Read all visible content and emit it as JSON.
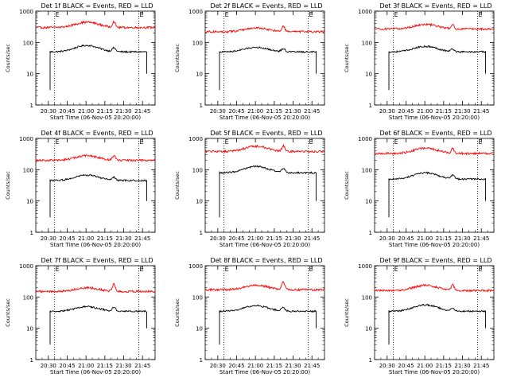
{
  "chart_data": [
    {
      "type": "line",
      "title": "Det 1f BLACK = Events, RED = LLD",
      "xlabel": "Start Time (06-Nov-05 20:20:00)",
      "ylabel": "Counts/sec",
      "x_ticks": [
        "20:30",
        "20:45",
        "21:00",
        "21:15",
        "21:30",
        "21:45"
      ],
      "y_ticks": [
        "1",
        "10",
        "100",
        "1000"
      ],
      "y_scale": "log",
      "ylim": [
        1,
        1000
      ],
      "xlim": [
        "20:20",
        "21:55"
      ],
      "markers": [
        "20:35",
        "21:42"
      ],
      "marker_labels": [
        "E",
        "E"
      ],
      "series": [
        {
          "color": "#000000"
        },
        {
          "color": "#ff0000"
        }
      ]
    },
    {
      "type": "line",
      "title": "Det 2f BLACK = Events, RED = LLD",
      "xlabel": "Start Time (06-Nov-05 20:20:00)",
      "ylabel": "Counts/sec",
      "x_ticks": [
        "20:30",
        "20:45",
        "21:00",
        "21:15",
        "21:30",
        "21:45"
      ],
      "y_ticks": [
        "1",
        "10",
        "100",
        "1000"
      ],
      "y_scale": "log",
      "ylim": [
        1,
        1000
      ],
      "xlim": [
        "20:20",
        "21:55"
      ],
      "markers": [
        "20:35",
        "21:42"
      ],
      "marker_labels": [
        "E",
        "E"
      ],
      "series": [
        {
          "color": "#000000"
        },
        {
          "color": "#ff0000"
        }
      ]
    },
    {
      "type": "line",
      "title": "Det 3f BLACK = Events, RED = LLD",
      "xlabel": "Start Time (06-Nov-05 20:20:00)",
      "ylabel": "Counts/sec",
      "x_ticks": [
        "20:30",
        "20:45",
        "21:00",
        "21:15",
        "21:30",
        "21:45"
      ],
      "y_ticks": [
        "1",
        "10",
        "100",
        "1000"
      ],
      "y_scale": "log",
      "ylim": [
        1,
        1000
      ],
      "xlim": [
        "20:20",
        "21:55"
      ],
      "markers": [
        "20:35",
        "21:42"
      ],
      "marker_labels": [
        "E",
        "E"
      ],
      "series": [
        {
          "color": "#000000"
        },
        {
          "color": "#ff0000"
        }
      ]
    },
    {
      "type": "line",
      "title": "Det 4f BLACK = Events, RED = LLD",
      "xlabel": "Start Time (06-Nov-05 20:20:00)",
      "ylabel": "Counts/sec",
      "x_ticks": [
        "20:30",
        "20:45",
        "21:00",
        "21:15",
        "21:30",
        "21:45"
      ],
      "y_ticks": [
        "1",
        "10",
        "100",
        "1000"
      ],
      "y_scale": "log",
      "ylim": [
        1,
        1000
      ],
      "xlim": [
        "20:20",
        "21:55"
      ],
      "markers": [
        "20:35",
        "21:42"
      ],
      "marker_labels": [
        "E",
        "E"
      ],
      "series": [
        {
          "color": "#000000"
        },
        {
          "color": "#ff0000"
        }
      ]
    },
    {
      "type": "line",
      "title": "Det 5f BLACK = Events, RED = LLD",
      "xlabel": "Start Time (06-Nov-05 20:20:00)",
      "ylabel": "Counts/sec",
      "x_ticks": [
        "20:30",
        "20:45",
        "21:00",
        "21:15",
        "21:30",
        "21:45"
      ],
      "y_ticks": [
        "1",
        "10",
        "100",
        "1000"
      ],
      "y_scale": "log",
      "ylim": [
        1,
        1000
      ],
      "xlim": [
        "20:20",
        "21:55"
      ],
      "markers": [
        "20:35",
        "21:42"
      ],
      "marker_labels": [
        "E",
        "E"
      ],
      "series": [
        {
          "color": "#000000"
        },
        {
          "color": "#ff0000"
        }
      ]
    },
    {
      "type": "line",
      "title": "Det 6f BLACK = Events, RED = LLD",
      "xlabel": "Start Time (06-Nov-05 20:20:00)",
      "ylabel": "Counts/sec",
      "x_ticks": [
        "20:30",
        "20:45",
        "21:00",
        "21:15",
        "21:30",
        "21:45"
      ],
      "y_ticks": [
        "1",
        "10",
        "100",
        "1000"
      ],
      "y_scale": "log",
      "ylim": [
        1,
        1000
      ],
      "xlim": [
        "20:20",
        "21:55"
      ],
      "markers": [
        "20:35",
        "21:42"
      ],
      "marker_labels": [
        "E",
        "E"
      ],
      "series": [
        {
          "color": "#000000"
        },
        {
          "color": "#ff0000"
        }
      ]
    },
    {
      "type": "line",
      "title": "Det 7f BLACK = Events, RED = LLD",
      "xlabel": "Start Time (06-Nov-05 20:20:00)",
      "ylabel": "Counts/sec",
      "x_ticks": [
        "20:30",
        "20:45",
        "21:00",
        "21:15",
        "21:30",
        "21:45"
      ],
      "y_ticks": [
        "1",
        "10",
        "100",
        "1000"
      ],
      "y_scale": "log",
      "ylim": [
        1,
        1000
      ],
      "xlim": [
        "20:20",
        "21:55"
      ],
      "markers": [
        "20:35",
        "21:42"
      ],
      "marker_labels": [
        "E",
        "E"
      ],
      "series": [
        {
          "color": "#000000"
        },
        {
          "color": "#ff0000"
        }
      ]
    },
    {
      "type": "line",
      "title": "Det 8f BLACK = Events, RED = LLD",
      "xlabel": "Start Time (06-Nov-05 20:20:00)",
      "ylabel": "Counts/sec",
      "x_ticks": [
        "20:30",
        "20:45",
        "21:00",
        "21:15",
        "21:30",
        "21:45"
      ],
      "y_ticks": [
        "1",
        "10",
        "100",
        "1000"
      ],
      "y_scale": "log",
      "ylim": [
        1,
        1000
      ],
      "xlim": [
        "20:20",
        "21:55"
      ],
      "markers": [
        "20:35",
        "21:42"
      ],
      "marker_labels": [
        "E",
        "E"
      ],
      "series": [
        {
          "color": "#000000"
        },
        {
          "color": "#ff0000"
        }
      ]
    },
    {
      "type": "line",
      "title": "Det 9f BLACK = Events, RED = LLD",
      "xlabel": "Start Time (06-Nov-05 20:20:00)",
      "ylabel": "Counts/sec",
      "x_ticks": [
        "20:30",
        "20:45",
        "21:00",
        "21:15",
        "21:30",
        "21:45"
      ],
      "y_ticks": [
        "1",
        "10",
        "100",
        "1000"
      ],
      "y_scale": "log",
      "ylim": [
        1,
        1000
      ],
      "xlim": [
        "20:20",
        "21:55"
      ],
      "markers": [
        "20:35",
        "21:42"
      ],
      "marker_labels": [
        "E",
        "E"
      ],
      "series": [
        {
          "color": "#000000"
        },
        {
          "color": "#ff0000"
        }
      ]
    }
  ]
}
